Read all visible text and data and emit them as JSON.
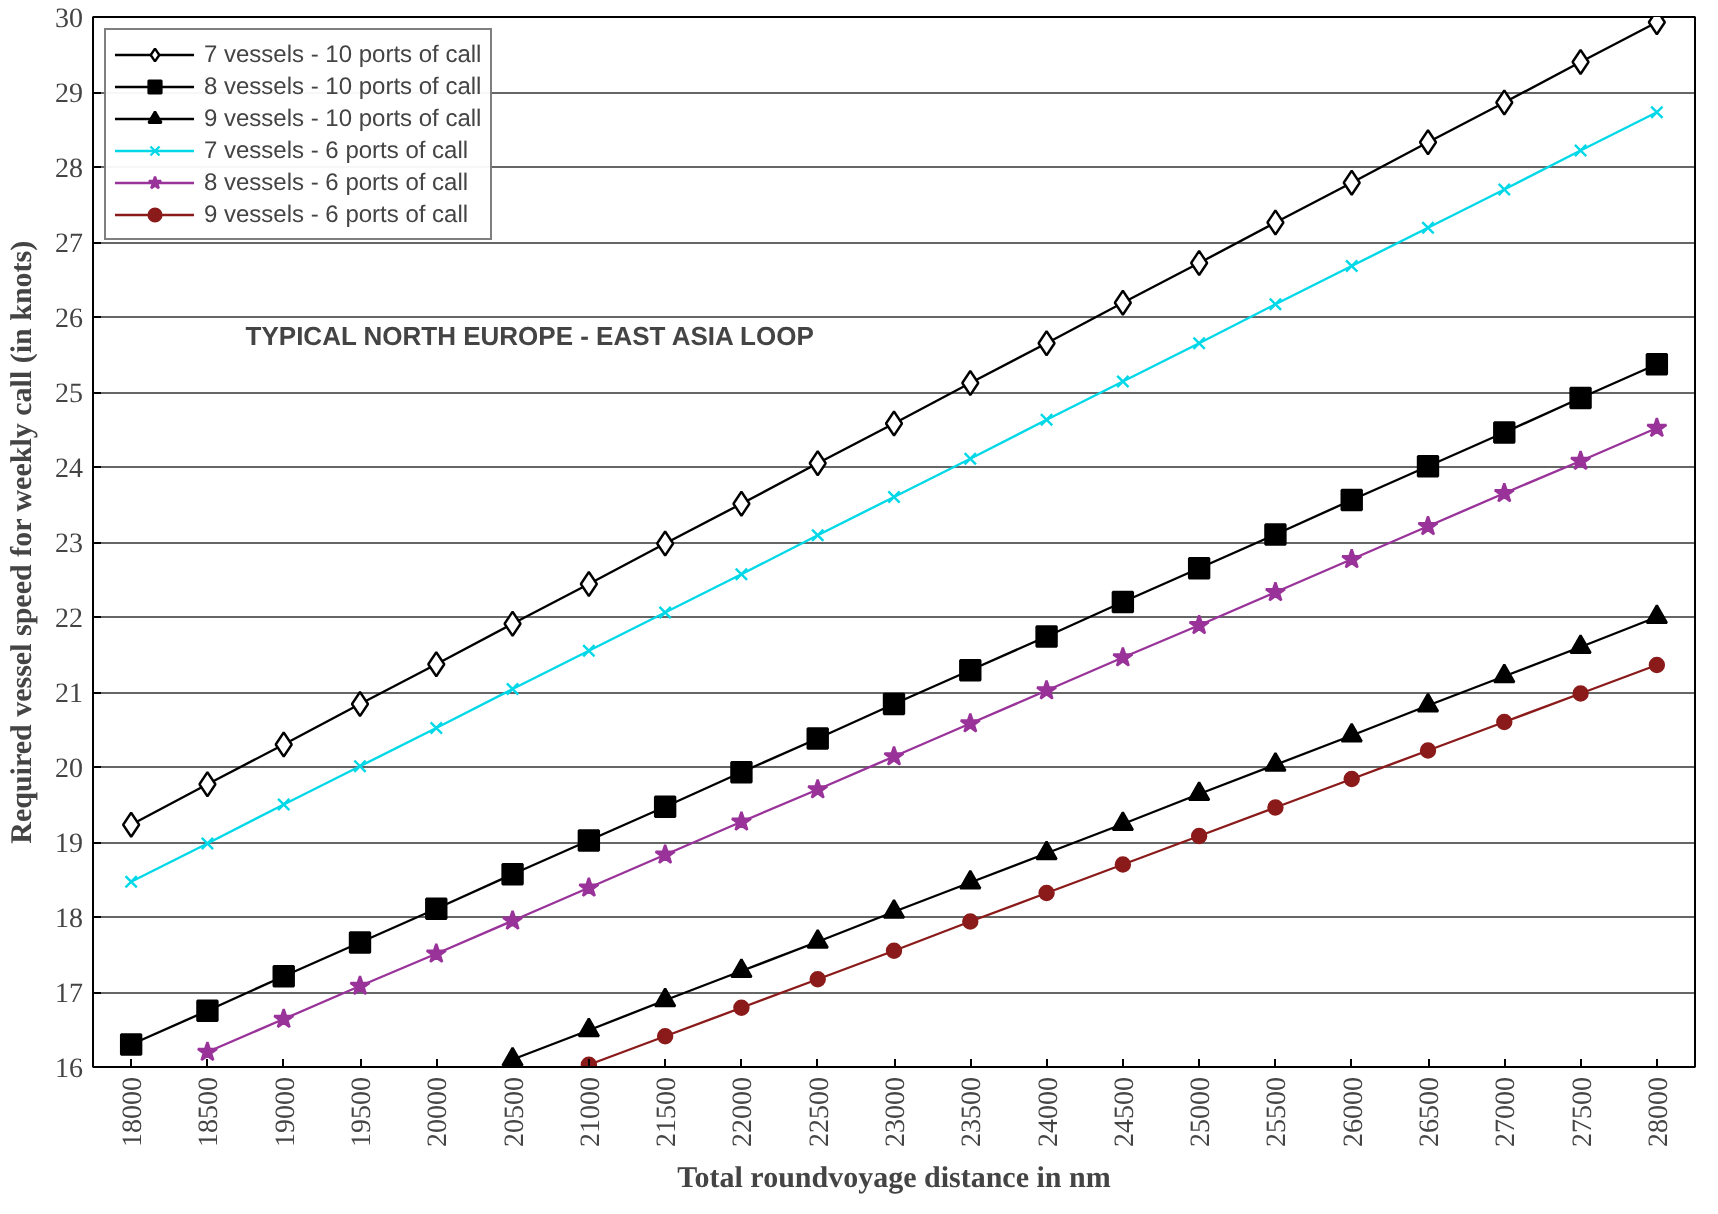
{
  "chart_data": {
    "type": "line",
    "xlabel": "Total roundvoyage distance in nm",
    "ylabel": "Required vessel speed for weekly call (in knots)",
    "categories": [
      "18000",
      "18500",
      "19000",
      "19500",
      "20000",
      "20500",
      "21000",
      "21500",
      "22000",
      "22500",
      "23000",
      "23500",
      "24000",
      "24500",
      "25000",
      "25500",
      "26000",
      "26500",
      "27000",
      "27500",
      "28000"
    ],
    "series": [
      {
        "name": "7 vessels - 10 ports of call",
        "color": "#000000",
        "marker": "diamond",
        "values": [
          19.23,
          19.77,
          20.3,
          20.84,
          21.37,
          21.91,
          22.44,
          22.98,
          23.51,
          24.05,
          24.58,
          25.12,
          25.65,
          26.19,
          26.72,
          27.26,
          27.79,
          28.33,
          28.86,
          29.4,
          29.93
        ]
      },
      {
        "name": "8 vessels - 10 ports of call",
        "color": "#000000",
        "marker": "square",
        "values": [
          16.3,
          16.75,
          17.21,
          17.66,
          18.11,
          18.57,
          19.02,
          19.47,
          19.93,
          20.38,
          20.84,
          21.29,
          21.74,
          22.2,
          22.65,
          23.1,
          23.56,
          24.01,
          24.46,
          24.92,
          25.37
        ]
      },
      {
        "name": "9 vessels - 10 ports of call",
        "color": "#000000",
        "marker": "triangle",
        "values": [
          null,
          null,
          null,
          null,
          null,
          16.1,
          16.49,
          16.89,
          17.28,
          17.67,
          18.07,
          18.46,
          18.85,
          19.24,
          19.64,
          20.03,
          20.42,
          20.82,
          21.21,
          21.6,
          22.0
        ]
      },
      {
        "name": "7 vessels - 6 ports of call",
        "color": "#00d8e8",
        "marker": "cross",
        "values": [
          18.47,
          18.98,
          19.5,
          20.01,
          20.52,
          21.04,
          21.55,
          22.06,
          22.57,
          23.09,
          23.6,
          24.11,
          24.63,
          25.14,
          25.65,
          26.17,
          26.68,
          27.19,
          27.7,
          28.22,
          28.73
        ]
      },
      {
        "name": "8 vessels - 6 ports of call",
        "color": "#993399",
        "marker": "star",
        "values": [
          null,
          16.2,
          16.64,
          17.08,
          17.51,
          17.95,
          18.39,
          18.83,
          19.27,
          19.7,
          20.14,
          20.58,
          21.02,
          21.46,
          21.89,
          22.33,
          22.77,
          23.21,
          23.65,
          24.08,
          24.52
        ]
      },
      {
        "name": "9 vessels - 6 ports of call",
        "color": "#8b1a1a",
        "marker": "circle",
        "values": [
          null,
          null,
          null,
          null,
          null,
          null,
          16.03,
          16.41,
          16.79,
          17.17,
          17.55,
          17.94,
          18.32,
          18.7,
          19.08,
          19.46,
          19.84,
          20.22,
          20.6,
          20.98,
          21.36
        ]
      }
    ],
    "ylim": [
      16,
      30
    ],
    "yticks": [
      16,
      17,
      18,
      19,
      20,
      21,
      22,
      23,
      24,
      25,
      26,
      27,
      28,
      29,
      30
    ],
    "grid": "y",
    "legend": "top left",
    "annotations": [
      "TYPICAL NORTH EUROPE - EAST ASIA LOOP"
    ]
  }
}
